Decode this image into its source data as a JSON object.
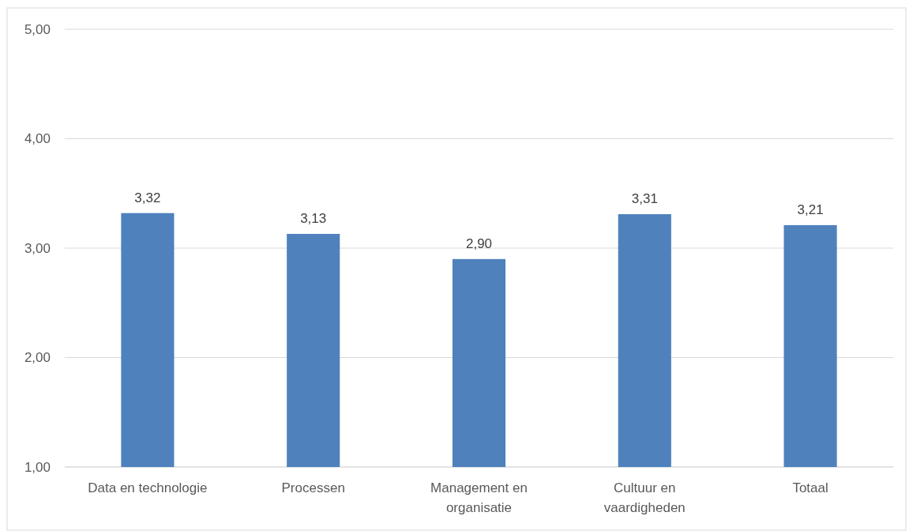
{
  "chart_data": {
    "type": "bar",
    "categories": [
      "Data en technologie",
      "Processen",
      "Management en organisatie",
      "Cultuur en vaardigheden",
      "Totaal"
    ],
    "values": [
      3.32,
      3.13,
      2.9,
      3.31,
      3.21
    ],
    "color": "#4f81bd",
    "ylim": [
      1,
      5
    ],
    "yticks": [
      {
        "value": 1,
        "label": "1,00"
      },
      {
        "value": 2,
        "label": "2,00"
      },
      {
        "value": 3,
        "label": "3,00"
      },
      {
        "value": 4,
        "label": "4,00"
      },
      {
        "value": 5,
        "label": "5,00"
      }
    ],
    "grid": "y",
    "value_labels": [
      "3,32",
      "3,13",
      "2,90",
      "3,31",
      "3,21"
    ]
  }
}
